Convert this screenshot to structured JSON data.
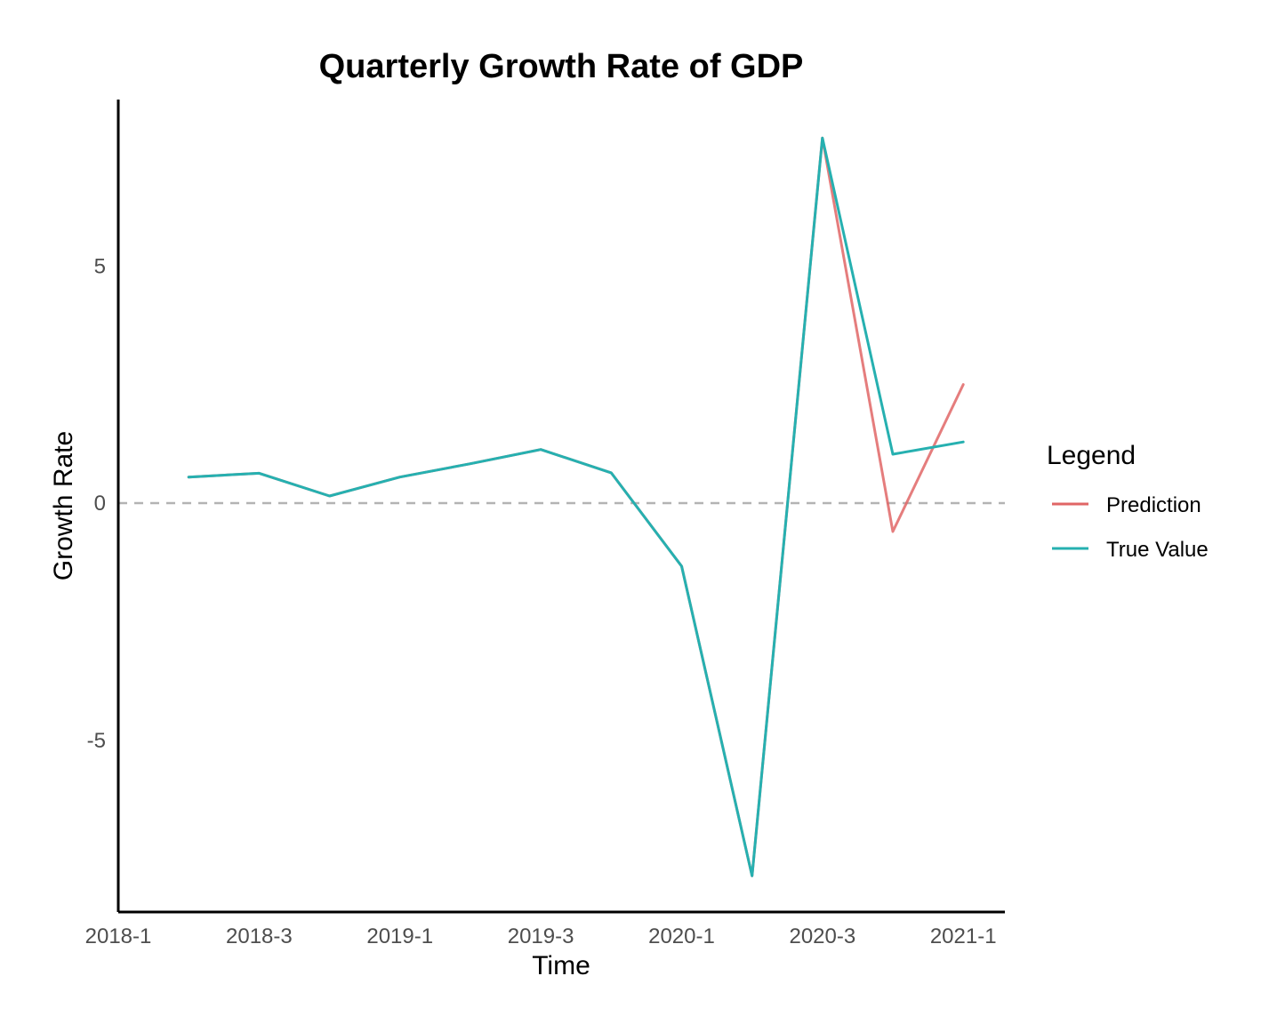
{
  "chart_data": {
    "type": "line",
    "title": "Quarterly Growth Rate of GDP",
    "xlabel": "Time",
    "ylabel": "Growth Rate",
    "x_ticks": [
      "2018-1",
      "2018-3",
      "2019-1",
      "2019-3",
      "2020-1",
      "2020-3",
      "2021-1"
    ],
    "x": [
      "2018-2",
      "2018-3",
      "2018-4",
      "2019-1",
      "2019-2",
      "2019-3",
      "2019-4",
      "2020-1",
      "2020-2",
      "2020-3",
      "2020-4",
      "2021-1"
    ],
    "y_ticks": [
      -5,
      0,
      5
    ],
    "ylim": [
      -8.6,
      8.6
    ],
    "reference_line": {
      "y": 0,
      "style": "dashed",
      "color": "#b3b3b3"
    },
    "grid": false,
    "legend": {
      "title": "Legend",
      "placement": "right",
      "entries": [
        "Prediction",
        "True Value"
      ]
    },
    "series": [
      {
        "name": "Prediction",
        "color": "#e06666",
        "values": [
          0.55,
          0.63,
          0.15,
          0.55,
          0.83,
          1.13,
          0.64,
          -1.33,
          -7.86,
          7.7,
          -0.6,
          2.5
        ]
      },
      {
        "name": "True Value",
        "color": "#26b0b0",
        "values": [
          0.55,
          0.63,
          0.15,
          0.55,
          0.83,
          1.13,
          0.64,
          -1.33,
          -7.86,
          7.7,
          1.03,
          1.29
        ]
      }
    ]
  }
}
